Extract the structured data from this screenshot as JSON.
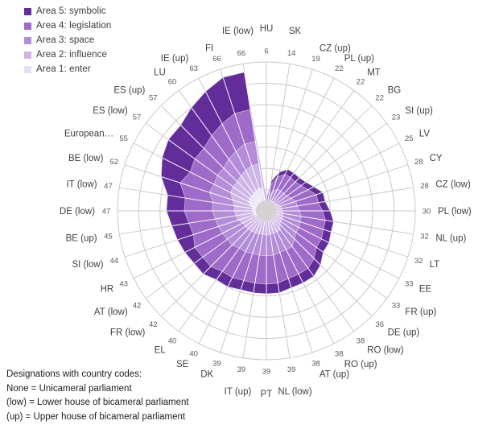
{
  "footnote": {
    "line1": "Designations with country codes:",
    "line2": "None = Unicameral parliament",
    "line3": "(low) = Lower house of bicameral parliament",
    "line4": "(up) = Upper house of bicameral parliament"
  },
  "chart_data": {
    "type": "area",
    "subtype": "polar-stacked-radar",
    "title": "",
    "legend_position": "top-left",
    "direction": "clockwise",
    "start_angle_deg": 0,
    "angle_step_deg": 9,
    "axis": {
      "max": 70,
      "ring_step": 10,
      "rings": 7,
      "grid": true
    },
    "categories": [
      "HU",
      "SK",
      "CZ (up)",
      "PL (up)",
      "MT",
      "BG",
      "SI (up)",
      "LV",
      "CY",
      "CZ (low)",
      "PL (low)",
      "NL (up)",
      "LT",
      "EE",
      "FR (up)",
      "DE (up)",
      "RO (low)",
      "RO (up)",
      "AT (up)",
      "NL (low)",
      "PT",
      "IT (up)",
      "DK",
      "SE",
      "EL",
      "FR (low)",
      "AT (low)",
      "HR",
      "SI (low)",
      "BE (up)",
      "DE (low)",
      "IT (low)",
      "BE (low)",
      "European…",
      "ES (low)",
      "ES (up)",
      "LU",
      "IE (up)",
      "FI",
      "IE (low)"
    ],
    "totals": [
      6,
      14,
      19,
      22,
      22,
      22,
      23,
      25,
      28,
      28,
      30,
      32,
      32,
      33,
      33,
      36,
      38,
      38,
      38,
      39,
      39,
      39,
      39,
      40,
      40,
      42,
      42,
      43,
      44,
      45,
      47,
      47,
      52,
      55,
      57,
      57,
      60,
      63,
      66,
      66
    ],
    "series": [
      {
        "name": "Area 1: enter",
        "color": "#E7DFF4",
        "values": [
          0.6,
          1.4,
          1.9,
          2.2,
          2.2,
          2.2,
          2.3,
          2.5,
          2.8,
          2.8,
          3.0,
          3.2,
          3.2,
          3.3,
          3.3,
          3.6,
          4.2,
          4.2,
          4.2,
          4.3,
          4.3,
          4.3,
          4.3,
          4.4,
          4.4,
          4.6,
          4.6,
          4.7,
          6.2,
          6.3,
          6.6,
          6.6,
          7.3,
          9.4,
          9.7,
          9.7,
          10.2,
          10.7,
          11.2,
          11.2
        ]
      },
      {
        "name": "Area 2: influence",
        "color": "#CDB5E5",
        "values": [
          0.8,
          2.0,
          2.7,
          3.1,
          3.1,
          3.1,
          3.2,
          3.5,
          4.2,
          4.2,
          4.5,
          4.8,
          4.8,
          5.0,
          5.0,
          5.4,
          6.8,
          6.8,
          6.8,
          7.0,
          7.0,
          7.0,
          7.0,
          7.2,
          7.2,
          7.6,
          7.6,
          7.7,
          7.9,
          8.1,
          8.5,
          8.5,
          9.4,
          9.4,
          9.7,
          9.7,
          10.2,
          10.7,
          11.2,
          11.2
        ]
      },
      {
        "name": "Area 3: space",
        "color": "#B48CD7",
        "values": [
          1.7,
          3.9,
          5.3,
          6.2,
          6.2,
          6.2,
          6.4,
          7.0,
          7.6,
          7.6,
          8.1,
          8.6,
          8.6,
          8.9,
          8.9,
          9.7,
          9.5,
          9.5,
          9.5,
          9.8,
          9.8,
          9.8,
          9.8,
          10.0,
          10.0,
          10.5,
          10.5,
          10.8,
          9.7,
          9.9,
          10.3,
          10.3,
          11.4,
          8.8,
          9.1,
          9.1,
          9.6,
          10.1,
          10.6,
          10.6
        ]
      },
      {
        "name": "Area 4: legislation",
        "color": "#9E6BC8",
        "values": [
          2.2,
          5.0,
          6.8,
          7.9,
          7.9,
          7.9,
          8.3,
          9.0,
          10.1,
          10.1,
          10.8,
          11.5,
          11.5,
          11.9,
          11.9,
          13.0,
          12.9,
          12.9,
          12.9,
          13.3,
          13.3,
          13.3,
          13.3,
          13.6,
          13.6,
          14.3,
          14.3,
          14.6,
          12.3,
          12.6,
          13.2,
          13.2,
          14.6,
          12.6,
          13.1,
          13.1,
          13.8,
          14.5,
          15.2,
          15.2
        ]
      },
      {
        "name": "Area 5: symbolic",
        "color": "#632D99",
        "values": [
          0.7,
          1.7,
          2.3,
          2.6,
          2.6,
          2.6,
          2.8,
          3.0,
          3.3,
          3.3,
          3.6,
          3.9,
          3.9,
          3.9,
          3.9,
          4.3,
          4.6,
          4.6,
          4.6,
          4.6,
          4.6,
          4.6,
          4.6,
          4.8,
          4.8,
          5.0,
          5.0,
          5.2,
          7.9,
          8.1,
          8.4,
          8.4,
          9.3,
          14.8,
          15.4,
          15.4,
          16.2,
          17.0,
          17.8,
          17.8
        ]
      }
    ],
    "colors": {
      "grid": "#C9C9C9",
      "spoke_overlay": "#FFFFFF",
      "center_dot": "#D5D2D2",
      "value_label": "#595959",
      "category_label": "#3F3F3F"
    }
  }
}
